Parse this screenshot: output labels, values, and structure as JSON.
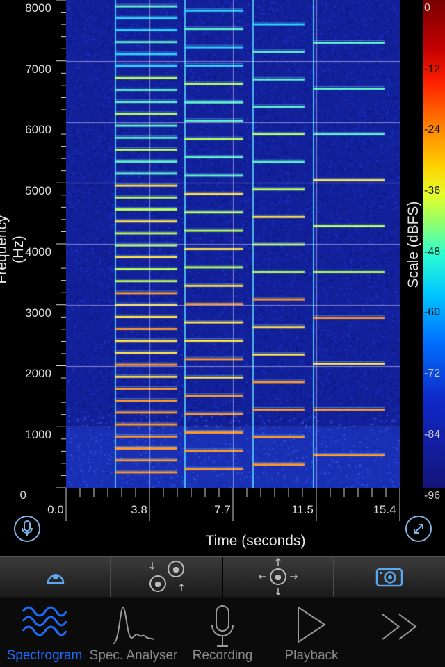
{
  "plot": {
    "y_axis_title": "Frequency (Hz)",
    "x_axis_title": "Time (seconds)",
    "y_ticks": [
      "8000",
      "7000",
      "6000",
      "5000",
      "4000",
      "3000",
      "2000",
      "1000",
      "0"
    ],
    "x_ticks": [
      "0.0",
      "3.8",
      "7.7",
      "11.5",
      "15.4"
    ]
  },
  "colorbar": {
    "title": "Scale (dBFS)",
    "ticks": [
      "0",
      "-12",
      "-24",
      "-36",
      "-48",
      "-60",
      "-72",
      "-84",
      "-96"
    ]
  },
  "buttons": {
    "left_icon": "microphone-icon",
    "right_icon": "expand-icon"
  },
  "toolbar": {
    "items": [
      "hold-icon",
      "vertical-pan-icon",
      "pan-icon",
      "camera-icon"
    ]
  },
  "tabs": [
    {
      "label": "Spectrogram",
      "icon": "waveform-icon",
      "active": true
    },
    {
      "label": "Spec. Analyser",
      "icon": "peak-icon",
      "active": false
    },
    {
      "label": "Recording",
      "icon": "microphone-icon",
      "active": false
    },
    {
      "label": "Playback",
      "icon": "play-icon",
      "active": false
    },
    {
      "label": "",
      "icon": "more-icon",
      "active": false
    }
  ]
}
